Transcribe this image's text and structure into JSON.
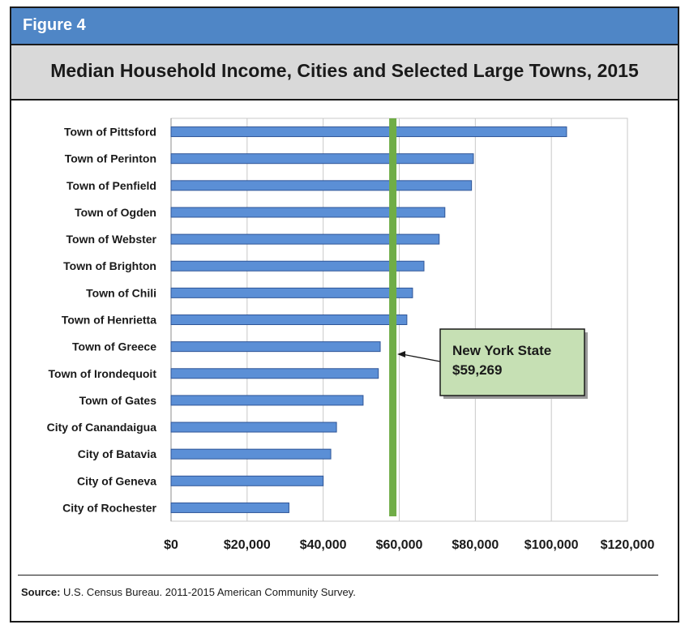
{
  "figure_label": "Figure 4",
  "title": "Median Household Income, Cities and Selected Large Towns, 2015",
  "source_label": "Source:",
  "source_text": "U.S. Census Bureau. 2011-2015 American Community Survey.",
  "colors": {
    "header": "#4f86c6",
    "bar": "#5b8fd6",
    "bar_border": "#2f5597",
    "reference_line": "#70ad47",
    "callout_fill": "#c6e0b4"
  },
  "chart_data": {
    "type": "bar",
    "orientation": "horizontal",
    "categories": [
      "Town of Pittsford",
      "Town of Perinton",
      "Town of Penfield",
      "Town of Ogden",
      "Town of Webster",
      "Town of Brighton",
      "Town of Chili",
      "Town of Henrietta",
      "Town of Greece",
      "Town of Irondequoit",
      "Town of Gates",
      "City of Canandaigua",
      "City of Batavia",
      "City of Geneva",
      "City of Rochester"
    ],
    "values": [
      104000,
      79500,
      79000,
      72000,
      70500,
      66500,
      63500,
      62000,
      55000,
      54500,
      50500,
      43500,
      42000,
      40000,
      31000
    ],
    "xlim": [
      0,
      120000
    ],
    "x_ticks": [
      "$0",
      "$20,000",
      "$40,000",
      "$60,000",
      "$80,000",
      "$100,000",
      "$120,000"
    ],
    "x_tick_values": [
      0,
      20000,
      40000,
      60000,
      80000,
      100000,
      120000
    ],
    "grid": true,
    "reference_line": {
      "value": 59269,
      "label_line1": "New York State",
      "label_line2": "$59,269"
    }
  }
}
